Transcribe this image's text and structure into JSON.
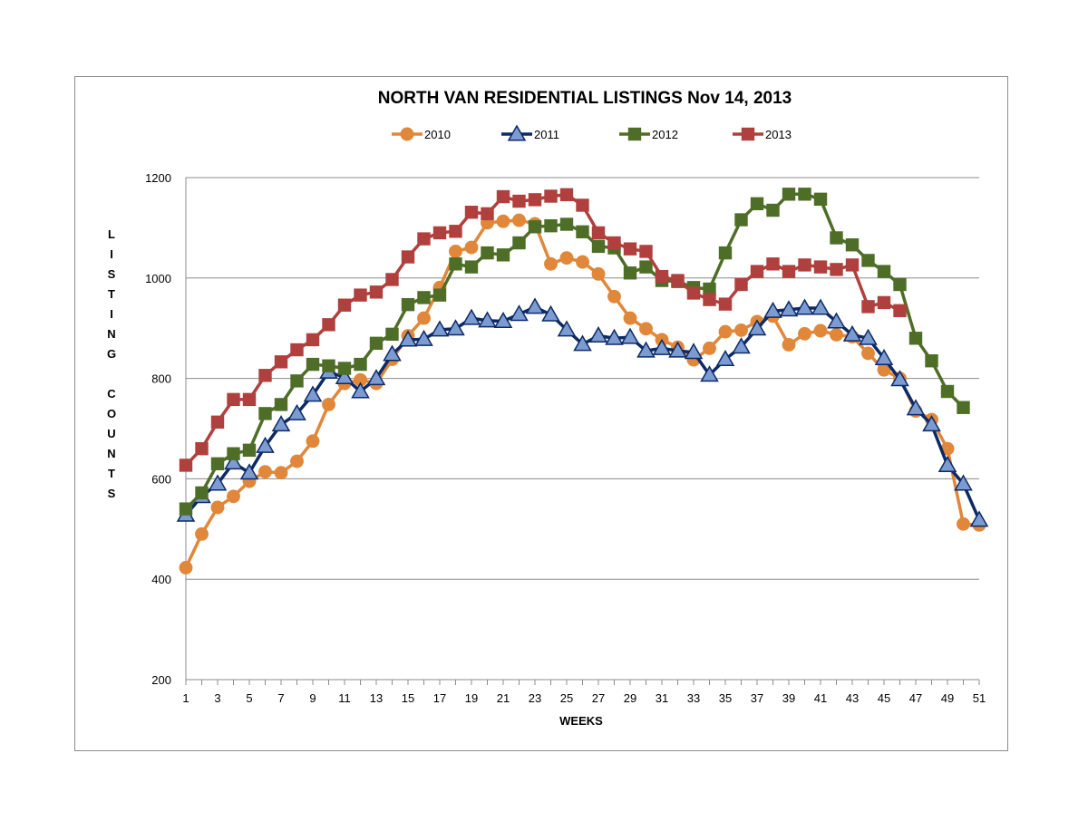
{
  "chart_data": {
    "type": "line",
    "title": "NORTH VAN RESIDENTIAL LISTINGS Nov 14, 2013",
    "xlabel": "WEEKS",
    "ylabel": "LISTING COUNTS",
    "ylabel_words": [
      "LISTING",
      "COUNTS"
    ],
    "ylim": [
      200,
      1200
    ],
    "yticks": [
      200,
      400,
      600,
      800,
      1000,
      1200
    ],
    "xlim": [
      1,
      51
    ],
    "xticks": [
      1,
      3,
      5,
      7,
      9,
      11,
      13,
      15,
      17,
      19,
      21,
      23,
      25,
      27,
      29,
      31,
      33,
      35,
      37,
      39,
      41,
      43,
      45,
      47,
      49,
      51
    ],
    "grid": "horizontal",
    "legend_position": "top",
    "series": [
      {
        "name": "2010",
        "color": "#E0873A",
        "marker": "circle",
        "x": [
          1,
          2,
          3,
          4,
          5,
          6,
          7,
          8,
          9,
          10,
          11,
          12,
          13,
          14,
          15,
          16,
          17,
          18,
          19,
          20,
          21,
          22,
          23,
          24,
          25,
          26,
          27,
          28,
          29,
          30,
          31,
          32,
          33,
          34,
          35,
          36,
          37,
          38,
          39,
          40,
          41,
          42,
          43,
          44,
          45,
          46,
          47,
          48,
          49,
          50,
          51
        ],
        "values": [
          423,
          490,
          543,
          565,
          595,
          614,
          612,
          635,
          675,
          748,
          790,
          797,
          790,
          838,
          885,
          920,
          981,
          1053,
          1061,
          1110,
          1113,
          1115,
          1108,
          1028,
          1040,
          1032,
          1008,
          963,
          920,
          899,
          877,
          862,
          837,
          860,
          893,
          896,
          913,
          924,
          867,
          889,
          895,
          887,
          883,
          850,
          817,
          800,
          735,
          718,
          660,
          510,
          508
        ]
      },
      {
        "name": "2011",
        "color": "#0D2A66",
        "marker": "triangle",
        "x": [
          1,
          2,
          3,
          4,
          5,
          6,
          7,
          8,
          9,
          10,
          11,
          12,
          13,
          14,
          15,
          16,
          17,
          18,
          19,
          20,
          21,
          22,
          23,
          24,
          25,
          26,
          27,
          28,
          29,
          30,
          31,
          32,
          33,
          34,
          35,
          36,
          37,
          38,
          39,
          40,
          41,
          42,
          43,
          44,
          45,
          46,
          47,
          48,
          49,
          50,
          51
        ],
        "values": [
          528,
          565,
          590,
          632,
          612,
          665,
          708,
          730,
          767,
          813,
          802,
          774,
          800,
          848,
          877,
          878,
          897,
          899,
          920,
          915,
          914,
          928,
          942,
          927,
          897,
          868,
          885,
          880,
          882,
          855,
          860,
          855,
          852,
          807,
          838,
          863,
          899,
          934,
          937,
          940,
          940,
          913,
          887,
          880,
          840,
          798,
          740,
          708,
          627,
          590,
          518
        ]
      },
      {
        "name": "2012",
        "color": "#4E6E27",
        "marker": "square",
        "x": [
          1,
          2,
          3,
          4,
          5,
          6,
          7,
          8,
          9,
          10,
          11,
          12,
          13,
          14,
          15,
          16,
          17,
          18,
          19,
          20,
          21,
          22,
          23,
          24,
          25,
          26,
          27,
          28,
          29,
          30,
          31,
          32,
          33,
          34,
          35,
          36,
          37,
          38,
          39,
          40,
          41,
          42,
          43,
          44,
          45,
          46,
          47,
          48,
          49,
          50
        ],
        "values": [
          540,
          572,
          630,
          650,
          657,
          730,
          748,
          795,
          828,
          825,
          820,
          828,
          870,
          888,
          947,
          961,
          966,
          1028,
          1022,
          1050,
          1046,
          1070,
          1102,
          1104,
          1107,
          1092,
          1063,
          1060,
          1010,
          1022,
          995,
          993,
          981,
          978,
          1050,
          1116,
          1148,
          1135,
          1167,
          1167,
          1157,
          1080,
          1066,
          1035,
          1013,
          987,
          880,
          835,
          774,
          742
        ]
      },
      {
        "name": "2013",
        "color": "#B0403D",
        "marker": "square",
        "x": [
          1,
          2,
          3,
          4,
          5,
          6,
          7,
          8,
          9,
          10,
          11,
          12,
          13,
          14,
          15,
          16,
          17,
          18,
          19,
          20,
          21,
          22,
          23,
          24,
          25,
          26,
          27,
          28,
          29,
          30,
          31,
          32,
          33,
          34,
          35,
          36,
          37,
          38,
          39,
          40,
          41,
          42,
          43,
          44,
          45,
          46
        ],
        "values": [
          627,
          660,
          713,
          758,
          758,
          806,
          833,
          857,
          877,
          907,
          946,
          966,
          972,
          997,
          1042,
          1078,
          1090,
          1093,
          1131,
          1128,
          1162,
          1153,
          1156,
          1163,
          1166,
          1145,
          1090,
          1070,
          1058,
          1053,
          1003,
          995,
          970,
          957,
          948,
          987,
          1013,
          1028,
          1013,
          1026,
          1022,
          1017,
          1026,
          943,
          951,
          935
        ]
      }
    ]
  }
}
